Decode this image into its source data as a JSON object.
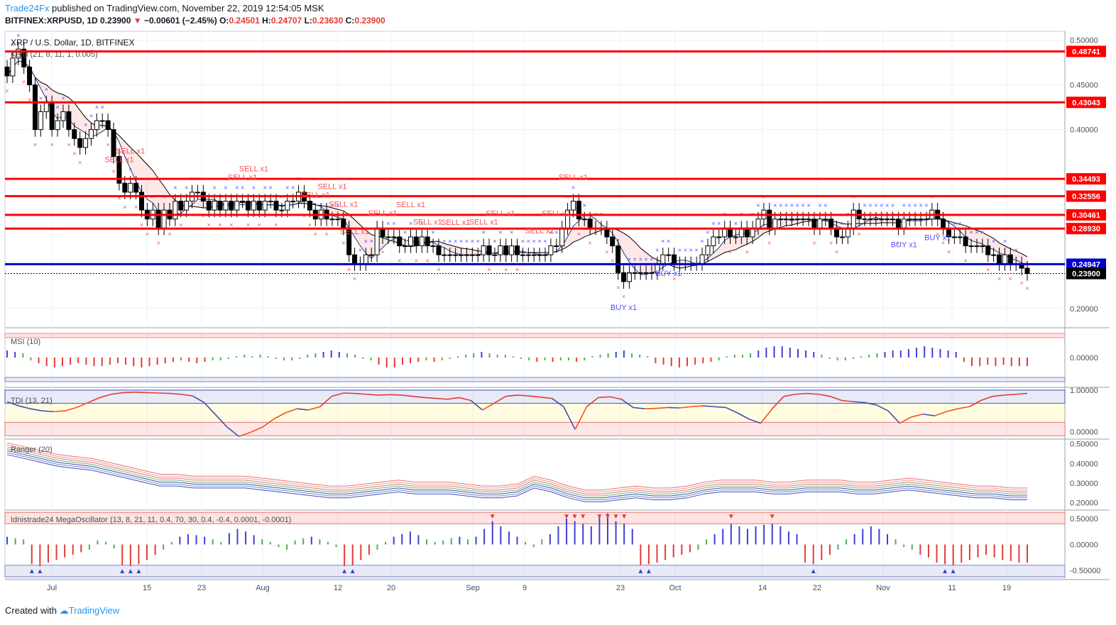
{
  "header": {
    "brand": "Trade24Fx",
    "published": "published on TradingView.com, November 22, 2019 12:54:05 MSK",
    "symbol_line": "BITFINEX:XRPUSD, 1D",
    "last": "0.23900",
    "change": "−0.00601 (−2.45%)",
    "o_label": "O:",
    "o": "0.24501",
    "h_label": "H:",
    "h": "0.24707",
    "l_label": "L:",
    "l": "0.23630",
    "c_label": "C:",
    "c": "0.23900"
  },
  "footer": {
    "created": "Created with",
    "logo": "TradingView"
  },
  "colors": {
    "bull": "#ffffff",
    "bear": "#000000",
    "level": "#ff0000",
    "support": "#0000cc",
    "sell_marker": "#ff4d4d",
    "buy_marker": "#5050ff",
    "kenji_upper": "#000000",
    "kenji_lower": "#1e3a8a",
    "accent": "#2196f3"
  },
  "chart_data": [
    {
      "type": "candlestick",
      "title": "XRP / U.S. Dollar, 1D, BITFINEX",
      "indicator_label": "Kenji (21, 8, 11, 1, 0.005)",
      "ylim": [
        0.18,
        0.51
      ],
      "y_ticks": [
        "0.50000",
        "0.45000",
        "0.40000",
        "0.20000"
      ],
      "x_ticks": [
        "Jul",
        "15",
        "23",
        "Aug",
        "12",
        "20",
        "Sep",
        "9",
        "23",
        "Oct",
        "14",
        "22",
        "Nov",
        "11",
        "19"
      ],
      "price_levels": [
        {
          "value": 0.48741,
          "label": "0.48741",
          "color": "red"
        },
        {
          "value": 0.43043,
          "label": "0.43043",
          "color": "red"
        },
        {
          "value": 0.34493,
          "label": "0.34493",
          "color": "red"
        },
        {
          "value": 0.32556,
          "label": "0.32556",
          "color": "red"
        },
        {
          "value": 0.30461,
          "label": "0.30461",
          "color": "red"
        },
        {
          "value": 0.2893,
          "label": "0.28930",
          "color": "red"
        },
        {
          "value": 0.24947,
          "label": "0.24947",
          "color": "blue"
        }
      ],
      "last_price": {
        "value": 0.239,
        "label": "0.23900"
      },
      "closes": [
        0.46,
        0.48,
        0.49,
        0.47,
        0.45,
        0.4,
        0.42,
        0.43,
        0.4,
        0.41,
        0.42,
        0.4,
        0.39,
        0.38,
        0.39,
        0.4,
        0.41,
        0.41,
        0.4,
        0.37,
        0.34,
        0.33,
        0.34,
        0.33,
        0.31,
        0.3,
        0.31,
        0.29,
        0.31,
        0.3,
        0.32,
        0.31,
        0.32,
        0.33,
        0.33,
        0.32,
        0.31,
        0.32,
        0.31,
        0.32,
        0.31,
        0.32,
        0.32,
        0.31,
        0.32,
        0.31,
        0.32,
        0.32,
        0.31,
        0.31,
        0.32,
        0.32,
        0.33,
        0.32,
        0.31,
        0.3,
        0.31,
        0.3,
        0.3,
        0.3,
        0.29,
        0.26,
        0.25,
        0.25,
        0.26,
        0.26,
        0.29,
        0.28,
        0.28,
        0.28,
        0.27,
        0.27,
        0.28,
        0.27,
        0.28,
        0.27,
        0.27,
        0.26,
        0.26,
        0.26,
        0.26,
        0.26,
        0.26,
        0.26,
        0.26,
        0.27,
        0.26,
        0.26,
        0.27,
        0.26,
        0.27,
        0.26,
        0.26,
        0.26,
        0.26,
        0.26,
        0.26,
        0.27,
        0.27,
        0.29,
        0.31,
        0.32,
        0.3,
        0.3,
        0.29,
        0.29,
        0.29,
        0.28,
        0.27,
        0.24,
        0.23,
        0.24,
        0.24,
        0.24,
        0.24,
        0.24,
        0.25,
        0.26,
        0.26,
        0.25,
        0.25,
        0.25,
        0.25,
        0.25,
        0.26,
        0.27,
        0.28,
        0.28,
        0.29,
        0.28,
        0.28,
        0.29,
        0.28,
        0.29,
        0.3,
        0.31,
        0.29,
        0.3,
        0.3,
        0.3,
        0.3,
        0.3,
        0.3,
        0.3,
        0.29,
        0.3,
        0.3,
        0.29,
        0.28,
        0.28,
        0.29,
        0.31,
        0.3,
        0.3,
        0.3,
        0.3,
        0.3,
        0.3,
        0.3,
        0.29,
        0.3,
        0.3,
        0.3,
        0.3,
        0.3,
        0.31,
        0.3,
        0.29,
        0.28,
        0.28,
        0.28,
        0.27,
        0.27,
        0.27,
        0.27,
        0.26,
        0.26,
        0.25,
        0.26,
        0.25,
        0.25,
        0.245,
        0.239
      ],
      "signals": [
        {
          "label": "SELL x1",
          "type": "sell"
        },
        {
          "label": "SELL x1",
          "type": "sell"
        },
        {
          "label": "SELL x1",
          "type": "sell"
        },
        {
          "label": "SELL x1",
          "type": "sell"
        },
        {
          "label": "SELL x1",
          "type": "sell"
        },
        {
          "label": "SELL x1",
          "type": "sell"
        },
        {
          "label": "SELL x1",
          "type": "sell"
        },
        {
          "label": "SELL x1",
          "type": "sell"
        },
        {
          "label": "SELL x1",
          "type": "sell"
        },
        {
          "label": "SELL x1",
          "type": "sell"
        },
        {
          "label": "SELL x1",
          "type": "sell"
        },
        {
          "label": "SELL x1",
          "type": "sell"
        },
        {
          "label": "SELL x1",
          "type": "sell"
        },
        {
          "label": "SELL x1",
          "type": "sell"
        },
        {
          "label": "SELL x1",
          "type": "sell"
        },
        {
          "label": "SELL x1",
          "type": "sell"
        },
        {
          "label": "SELL x1",
          "type": "sell"
        },
        {
          "label": "BUY x1",
          "type": "buy"
        },
        {
          "label": "BUY x1",
          "type": "buy"
        },
        {
          "label": "BUY x1",
          "type": "buy"
        },
        {
          "label": "BUY x1",
          "type": "buy"
        }
      ]
    },
    {
      "type": "bar",
      "title": "MSI (10)",
      "ylim": [
        -0.2,
        0.2
      ],
      "y_ticks": [
        "0.00000"
      ],
      "values": [
        0.05,
        0.04,
        0.03,
        -0.02,
        -0.04,
        -0.06,
        -0.07,
        -0.06,
        -0.05,
        -0.04,
        -0.05,
        -0.06,
        -0.06,
        -0.05,
        -0.04,
        -0.05,
        -0.06,
        -0.07,
        -0.06,
        -0.05,
        -0.04,
        -0.03,
        -0.02,
        -0.03,
        -0.04,
        -0.03,
        -0.02,
        -0.02,
        -0.01,
        0.01,
        0.02,
        0.01,
        0.02,
        0.01,
        -0.01,
        -0.02,
        -0.02,
        -0.01,
        0.02,
        0.03,
        0.04,
        0.05,
        0.04,
        0.03,
        0.02,
        -0.01,
        -0.02,
        -0.05,
        -0.07,
        -0.07,
        -0.05,
        -0.04,
        -0.03,
        -0.02,
        -0.03,
        -0.02,
        -0.01,
        0.01,
        0.02,
        0.03,
        0.04,
        0.03,
        0.02,
        0.02,
        0.01,
        -0.01,
        -0.02,
        -0.03,
        -0.02,
        -0.03,
        -0.02,
        -0.02,
        -0.03,
        -0.02,
        0.01,
        0.02,
        0.03,
        0.04,
        0.05,
        0.03,
        0.02,
        0.01,
        -0.04,
        -0.05,
        -0.06,
        -0.07,
        -0.06,
        -0.05,
        -0.04,
        -0.03,
        -0.02,
        0.01,
        0.02,
        0.02,
        0.03,
        0.05,
        0.07,
        0.08,
        0.08,
        0.07,
        0.06,
        0.05,
        0.04,
        0.02,
        -0.01,
        -0.02,
        -0.02,
        -0.01,
        0.01,
        0.02,
        0.03,
        0.04,
        0.05,
        0.05,
        0.06,
        0.07,
        0.08,
        0.07,
        0.06,
        0.05,
        0.04,
        -0.03,
        -0.06,
        -0.06,
        -0.05,
        -0.06,
        -0.05,
        -0.06,
        -0.06,
        -0.06
      ]
    },
    {
      "type": "line",
      "title": "TDI (13, 21)",
      "ylim": [
        -0.15,
        1.05
      ],
      "y_ticks": [
        "1.00000",
        "0.00000"
      ],
      "values": [
        0.72,
        0.62,
        0.55,
        0.5,
        0.48,
        0.5,
        0.58,
        0.7,
        0.82,
        0.9,
        0.94,
        0.95,
        0.94,
        0.93,
        0.92,
        0.9,
        0.86,
        0.7,
        0.4,
        0.1,
        -0.12,
        -0.02,
        0.1,
        0.3,
        0.45,
        0.55,
        0.52,
        0.6,
        0.85,
        0.93,
        0.92,
        0.9,
        0.88,
        0.89,
        0.88,
        0.85,
        0.82,
        0.8,
        0.78,
        0.82,
        0.75,
        0.52,
        0.68,
        0.85,
        0.88,
        0.86,
        0.83,
        0.8,
        0.6,
        0.05,
        0.6,
        0.82,
        0.84,
        0.78,
        0.58,
        0.55,
        0.56,
        0.58,
        0.57,
        0.6,
        0.62,
        0.6,
        0.58,
        0.45,
        0.3,
        0.2,
        0.55,
        0.85,
        0.9,
        0.92,
        0.9,
        0.85,
        0.75,
        0.72,
        0.7,
        0.64,
        0.5,
        0.2,
        0.35,
        0.42,
        0.38,
        0.48,
        0.55,
        0.6,
        0.75,
        0.85,
        0.88,
        0.9,
        0.92
      ]
    },
    {
      "type": "line",
      "title": "Ranger (20)",
      "ylim": [
        0.17,
        0.52
      ],
      "y_ticks": [
        "0.50000",
        "0.40000",
        "0.30000",
        "0.20000"
      ],
      "values": [
        0.47,
        0.45,
        0.43,
        0.41,
        0.4,
        0.39,
        0.37,
        0.35,
        0.33,
        0.31,
        0.31,
        0.3,
        0.3,
        0.3,
        0.3,
        0.29,
        0.28,
        0.27,
        0.26,
        0.25,
        0.25,
        0.26,
        0.27,
        0.28,
        0.27,
        0.27,
        0.27,
        0.26,
        0.25,
        0.25,
        0.26,
        0.3,
        0.28,
        0.25,
        0.23,
        0.23,
        0.24,
        0.25,
        0.24,
        0.24,
        0.25,
        0.27,
        0.28,
        0.28,
        0.28,
        0.27,
        0.27,
        0.28,
        0.28,
        0.28,
        0.27,
        0.27,
        0.28,
        0.29,
        0.28,
        0.27,
        0.26,
        0.25,
        0.25,
        0.24,
        0.24
      ]
    },
    {
      "type": "bar",
      "title": "Idnistrade24 MegaOscillator (13, 8, 21, 11, 0.4, 70, 30, 0.4, -0.4, 0.0001, -0.0001)",
      "ylim": [
        -0.65,
        0.65
      ],
      "y_ticks": [
        "0.50000",
        "0.00000",
        "-0.50000"
      ],
      "values": [
        0.15,
        0.12,
        0.1,
        -0.38,
        -0.42,
        -0.35,
        -0.3,
        -0.25,
        -0.2,
        -0.15,
        -0.1,
        0.08,
        0.05,
        -0.08,
        -0.4,
        -0.42,
        -0.38,
        -0.3,
        -0.2,
        -0.1,
        0.05,
        0.15,
        0.2,
        0.18,
        0.15,
        0.1,
        0.05,
        0.22,
        0.3,
        0.25,
        0.18,
        0.1,
        0.05,
        -0.05,
        -0.1,
        0.08,
        0.12,
        0.15,
        0.1,
        0.05,
        -0.05,
        -0.42,
        -0.4,
        -0.3,
        -0.2,
        -0.1,
        0.05,
        0.15,
        0.2,
        0.25,
        0.18,
        0.1,
        0.05,
        0.08,
        0.12,
        0.15,
        0.1,
        0.15,
        0.3,
        0.45,
        0.35,
        0.25,
        0.15,
        0.05,
        -0.05,
        0.1,
        0.2,
        0.35,
        0.5,
        0.45,
        0.4,
        0.35,
        0.55,
        0.6,
        0.45,
        0.4,
        0.3,
        -0.4,
        -0.38,
        -0.35,
        -0.3,
        -0.25,
        -0.2,
        -0.15,
        -0.1,
        0.1,
        0.2,
        0.3,
        0.4,
        0.35,
        0.3,
        0.35,
        0.38,
        0.4,
        0.35,
        0.25,
        0.2,
        -0.35,
        -0.38,
        -0.3,
        -0.2,
        -0.1,
        0.1,
        0.2,
        0.3,
        0.35,
        0.3,
        0.2,
        0.1,
        -0.05,
        -0.1,
        -0.2,
        -0.25,
        -0.35,
        -0.38,
        -0.4,
        -0.35,
        -0.3,
        -0.25,
        -0.2,
        -0.25,
        -0.3,
        -0.32,
        -0.35,
        -0.35
      ]
    }
  ]
}
